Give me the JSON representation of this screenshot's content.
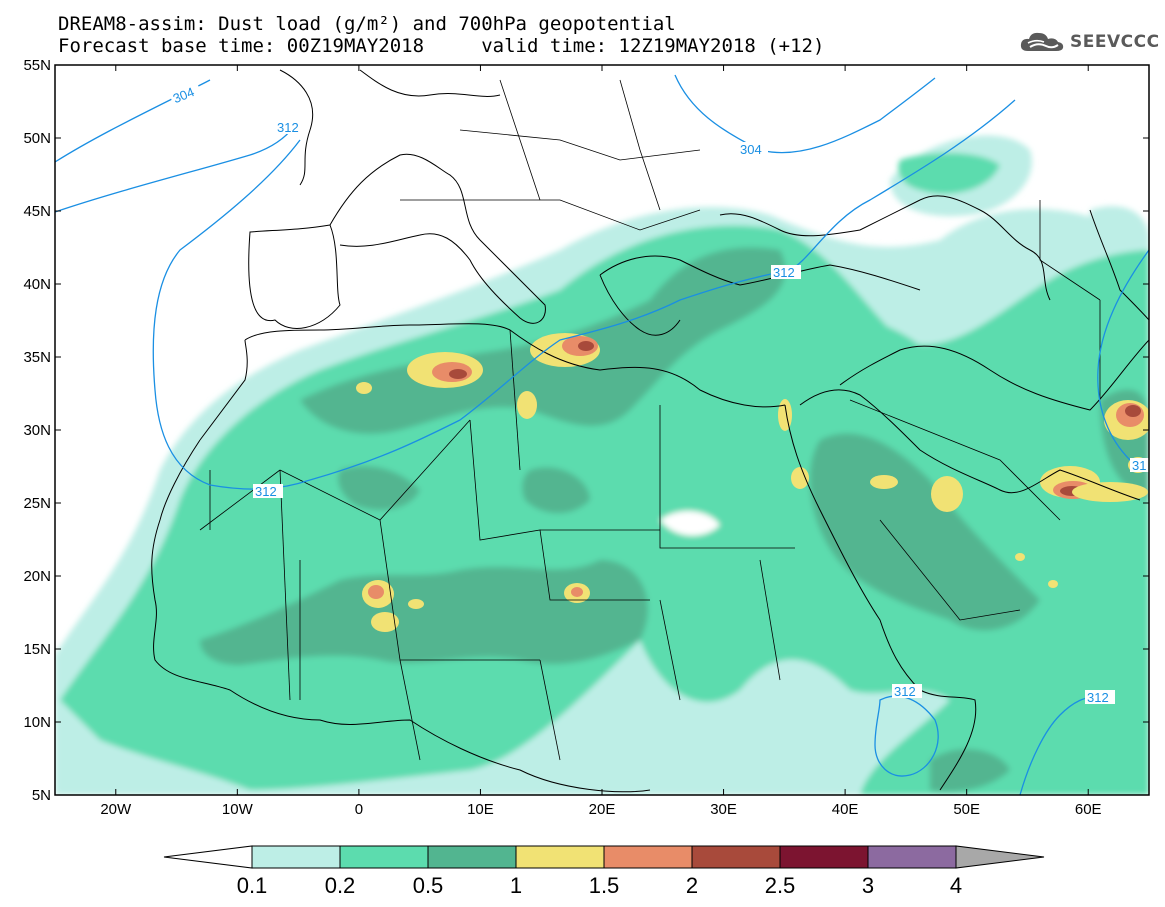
{
  "title": {
    "line1": "DREAM8-assim: Dust load (g/m²) and 700hPa geopotential",
    "line2": "Forecast base time: 00Z19MAY2018     valid time: 12Z19MAY2018 (+12)"
  },
  "logo": {
    "icon": "cloud-logo-icon",
    "text": "SEEVCCC"
  },
  "map": {
    "lon_range": [
      -25,
      65
    ],
    "lat_range": [
      5,
      55
    ],
    "lat_labels": [
      "55N",
      "50N",
      "45N",
      "40N",
      "35N",
      "30N",
      "25N",
      "20N",
      "15N",
      "10N",
      "5N"
    ],
    "lon_labels": [
      "20W",
      "10W",
      "0",
      "10E",
      "20E",
      "30E",
      "40E",
      "50E",
      "60E"
    ],
    "contour_labels": [
      "304",
      "312",
      "304",
      "312",
      "312",
      "312",
      "312",
      "31"
    ]
  },
  "colorbar": {
    "labels": [
      "0.1",
      "0.2",
      "0.5",
      "1",
      "1.5",
      "2",
      "2.5",
      "3",
      "4"
    ],
    "colors": [
      "#bdeee6",
      "#5cdcae",
      "#52b590",
      "#f1e274",
      "#e88c68",
      "#a84a3b",
      "#7c1430",
      "#8c6aa0"
    ],
    "under_color": "#ffffff",
    "over_color": "#a8a8a8"
  },
  "colors": {
    "contour": "#1a8fe3",
    "coast": "#000000"
  }
}
